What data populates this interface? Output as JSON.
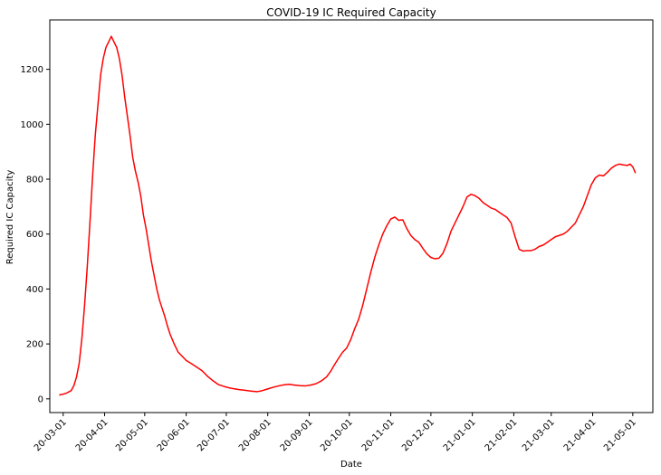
{
  "chart_data": {
    "type": "line",
    "title": "COVID-19 IC Required Capacity",
    "xlabel": "Date",
    "ylabel": "Required IC Capacity",
    "ylim": [
      -50,
      1380
    ],
    "xlim": [
      "2020-02-20",
      "2021-05-16"
    ],
    "grid": false,
    "yticks": [
      0,
      200,
      400,
      600,
      800,
      1000,
      1200
    ],
    "xticks": [
      "20-03-01",
      "20-04-01",
      "20-05-01",
      "20-06-01",
      "20-07-01",
      "20-08-01",
      "20-09-01",
      "20-10-01",
      "20-11-01",
      "20-12-01",
      "21-01-01",
      "21-02-01",
      "21-03-01",
      "21-04-01",
      "21-05-01"
    ],
    "series": [
      {
        "color": "#ff0000",
        "points": [
          [
            "2020-02-27",
            14
          ],
          [
            "2020-03-01",
            17
          ],
          [
            "2020-03-04",
            22
          ],
          [
            "2020-03-07",
            30
          ],
          [
            "2020-03-09",
            48
          ],
          [
            "2020-03-11",
            80
          ],
          [
            "2020-03-13",
            130
          ],
          [
            "2020-03-15",
            220
          ],
          [
            "2020-03-17",
            340
          ],
          [
            "2020-03-19",
            480
          ],
          [
            "2020-03-21",
            640
          ],
          [
            "2020-03-23",
            810
          ],
          [
            "2020-03-25",
            960
          ],
          [
            "2020-03-27",
            1070
          ],
          [
            "2020-03-29",
            1180
          ],
          [
            "2020-03-31",
            1240
          ],
          [
            "2020-04-02",
            1280
          ],
          [
            "2020-04-04",
            1300
          ],
          [
            "2020-04-06",
            1320
          ],
          [
            "2020-04-08",
            1300
          ],
          [
            "2020-04-10",
            1280
          ],
          [
            "2020-04-12",
            1240
          ],
          [
            "2020-04-14",
            1180
          ],
          [
            "2020-04-16",
            1100
          ],
          [
            "2020-04-18",
            1030
          ],
          [
            "2020-04-20",
            960
          ],
          [
            "2020-04-22",
            880
          ],
          [
            "2020-04-24",
            830
          ],
          [
            "2020-04-26",
            790
          ],
          [
            "2020-04-28",
            740
          ],
          [
            "2020-04-30",
            670
          ],
          [
            "2020-05-02",
            620
          ],
          [
            "2020-05-04",
            560
          ],
          [
            "2020-05-06",
            500
          ],
          [
            "2020-05-08",
            450
          ],
          [
            "2020-05-10",
            400
          ],
          [
            "2020-05-12",
            360
          ],
          [
            "2020-05-14",
            330
          ],
          [
            "2020-05-16",
            300
          ],
          [
            "2020-05-18",
            265
          ],
          [
            "2020-05-20",
            235
          ],
          [
            "2020-05-23",
            200
          ],
          [
            "2020-05-26",
            170
          ],
          [
            "2020-05-29",
            155
          ],
          [
            "2020-06-01",
            140
          ],
          [
            "2020-06-05",
            128
          ],
          [
            "2020-06-09",
            115
          ],
          [
            "2020-06-13",
            102
          ],
          [
            "2020-06-17",
            82
          ],
          [
            "2020-06-21",
            66
          ],
          [
            "2020-06-25",
            52
          ],
          [
            "2020-06-30",
            44
          ],
          [
            "2020-07-05",
            38
          ],
          [
            "2020-07-10",
            34
          ],
          [
            "2020-07-15",
            31
          ],
          [
            "2020-07-20",
            28
          ],
          [
            "2020-07-24",
            26
          ],
          [
            "2020-07-28",
            30
          ],
          [
            "2020-08-01",
            36
          ],
          [
            "2020-08-05",
            42
          ],
          [
            "2020-08-09",
            47
          ],
          [
            "2020-08-13",
            51
          ],
          [
            "2020-08-17",
            53
          ],
          [
            "2020-08-21",
            50
          ],
          [
            "2020-08-25",
            48
          ],
          [
            "2020-08-29",
            47
          ],
          [
            "2020-09-02",
            50
          ],
          [
            "2020-09-06",
            55
          ],
          [
            "2020-09-10",
            65
          ],
          [
            "2020-09-14",
            80
          ],
          [
            "2020-09-17",
            100
          ],
          [
            "2020-09-20",
            125
          ],
          [
            "2020-09-23",
            148
          ],
          [
            "2020-09-26",
            170
          ],
          [
            "2020-09-29",
            185
          ],
          [
            "2020-10-02",
            215
          ],
          [
            "2020-10-05",
            255
          ],
          [
            "2020-10-08",
            290
          ],
          [
            "2020-10-11",
            340
          ],
          [
            "2020-10-14",
            400
          ],
          [
            "2020-10-17",
            460
          ],
          [
            "2020-10-20",
            515
          ],
          [
            "2020-10-23",
            560
          ],
          [
            "2020-10-26",
            600
          ],
          [
            "2020-10-29",
            630
          ],
          [
            "2020-11-01",
            655
          ],
          [
            "2020-11-04",
            662
          ],
          [
            "2020-11-07",
            650
          ],
          [
            "2020-11-10",
            652
          ],
          [
            "2020-11-13",
            620
          ],
          [
            "2020-11-16",
            595
          ],
          [
            "2020-11-19",
            580
          ],
          [
            "2020-11-22",
            570
          ],
          [
            "2020-11-25",
            548
          ],
          [
            "2020-11-28",
            528
          ],
          [
            "2020-12-01",
            515
          ],
          [
            "2020-12-04",
            510
          ],
          [
            "2020-12-07",
            512
          ],
          [
            "2020-12-10",
            530
          ],
          [
            "2020-12-13",
            565
          ],
          [
            "2020-12-16",
            610
          ],
          [
            "2020-12-19",
            640
          ],
          [
            "2020-12-22",
            670
          ],
          [
            "2020-12-25",
            700
          ],
          [
            "2020-12-28",
            735
          ],
          [
            "2020-12-31",
            745
          ],
          [
            "2021-01-03",
            740
          ],
          [
            "2021-01-06",
            730
          ],
          [
            "2021-01-09",
            715
          ],
          [
            "2021-01-12",
            705
          ],
          [
            "2021-01-15",
            695
          ],
          [
            "2021-01-18",
            690
          ],
          [
            "2021-01-21",
            680
          ],
          [
            "2021-01-24",
            670
          ],
          [
            "2021-01-27",
            660
          ],
          [
            "2021-01-30",
            640
          ],
          [
            "2021-02-02",
            590
          ],
          [
            "2021-02-05",
            545
          ],
          [
            "2021-02-08",
            538
          ],
          [
            "2021-02-11",
            540
          ],
          [
            "2021-02-14",
            540
          ],
          [
            "2021-02-17",
            545
          ],
          [
            "2021-02-20",
            555
          ],
          [
            "2021-02-23",
            560
          ],
          [
            "2021-02-26",
            570
          ],
          [
            "2021-03-01",
            580
          ],
          [
            "2021-03-04",
            590
          ],
          [
            "2021-03-07",
            595
          ],
          [
            "2021-03-10",
            600
          ],
          [
            "2021-03-13",
            610
          ],
          [
            "2021-03-16",
            625
          ],
          [
            "2021-03-19",
            640
          ],
          [
            "2021-03-22",
            670
          ],
          [
            "2021-03-25",
            700
          ],
          [
            "2021-03-28",
            740
          ],
          [
            "2021-03-31",
            780
          ],
          [
            "2021-04-03",
            805
          ],
          [
            "2021-04-06",
            815
          ],
          [
            "2021-04-09",
            812
          ],
          [
            "2021-04-12",
            825
          ],
          [
            "2021-04-15",
            840
          ],
          [
            "2021-04-18",
            850
          ],
          [
            "2021-04-21",
            855
          ],
          [
            "2021-04-24",
            852
          ],
          [
            "2021-04-27",
            850
          ],
          [
            "2021-04-29",
            855
          ],
          [
            "2021-05-01",
            845
          ],
          [
            "2021-05-03",
            822
          ]
        ]
      }
    ]
  }
}
